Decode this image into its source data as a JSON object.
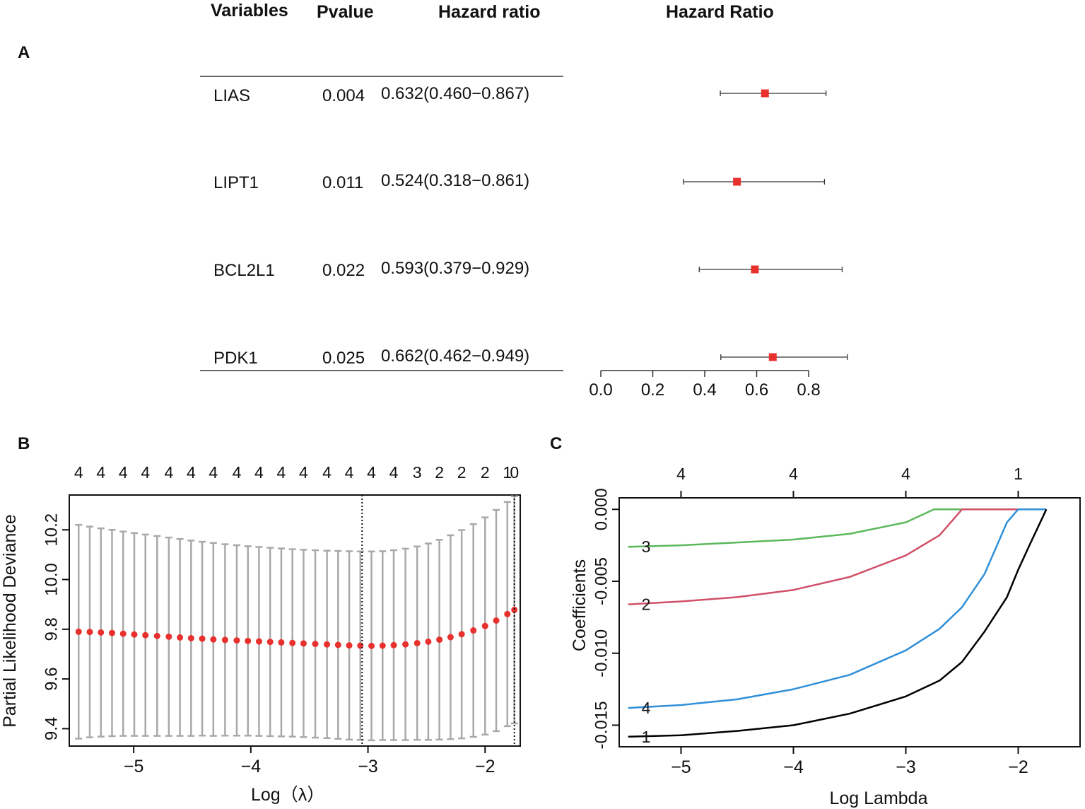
{
  "chart_data": [
    {
      "panel": "A",
      "type": "forest",
      "columns": {
        "variables": "Variables",
        "pvalue": "Pvalue",
        "hazard_ratio": "Hazard ratio"
      },
      "plot_title": "Hazard Ratio",
      "rows": [
        {
          "variable": "LIAS",
          "pvalue": "0.004",
          "hr_text": "0.632(0.460−0.867)",
          "hr": 0.632,
          "lower": 0.46,
          "upper": 0.867
        },
        {
          "variable": "LIPT1",
          "pvalue": "0.011",
          "hr_text": "0.524(0.318−0.861)",
          "hr": 0.524,
          "lower": 0.318,
          "upper": 0.861
        },
        {
          "variable": "BCL2L1",
          "pvalue": "0.022",
          "hr_text": "0.593(0.379−0.929)",
          "hr": 0.593,
          "lower": 0.379,
          "upper": 0.929
        },
        {
          "variable": "PDK1",
          "pvalue": "0.025",
          "hr_text": "0.662(0.462−0.949)",
          "hr": 0.662,
          "lower": 0.462,
          "upper": 0.949
        }
      ],
      "xaxis": {
        "min": 0.0,
        "max": 0.8,
        "ticks": [
          0.0,
          0.2,
          0.4,
          0.6,
          0.8
        ],
        "tick_labels": [
          "0.0",
          "0.2",
          "0.4",
          "0.6",
          "0.8"
        ]
      },
      "colors": {
        "point": "#e8302d",
        "line": "#333333"
      }
    },
    {
      "panel": "B",
      "type": "scatter",
      "xlabel": "Log（λ）",
      "ylabel": "Partial Likelihood Deviance",
      "xlim": [
        -5.55,
        -1.7
      ],
      "ylim": [
        9.33,
        10.34
      ],
      "xticks": [
        -5,
        -4,
        -3,
        -2
      ],
      "xtick_labels": [
        "−5",
        "−4",
        "−3",
        "−2"
      ],
      "yticks": [
        9.4,
        9.6,
        9.8,
        10.0,
        10.2
      ],
      "ytick_labels": [
        "9.4",
        "9.6",
        "9.8",
        "10.0",
        "10.2"
      ],
      "top_labels": [
        "4",
        "4",
        "4",
        "4",
        "4",
        "4",
        "4",
        "4",
        "4",
        "4",
        "4",
        "4",
        "4",
        "4",
        "4",
        "3",
        "2",
        "2",
        "2",
        "1",
        "0"
      ],
      "top_label_x": [
        -5.47,
        -5.28,
        -5.09,
        -4.9,
        -4.7,
        -4.51,
        -4.32,
        -4.12,
        -3.93,
        -3.74,
        -3.55,
        -3.35,
        -3.16,
        -2.97,
        -2.78,
        -2.58,
        -2.39,
        -2.2,
        -2.0,
        -1.81,
        -1.75
      ],
      "x": [
        -5.47,
        -5.375,
        -5.28,
        -5.185,
        -5.09,
        -4.995,
        -4.9,
        -4.8,
        -4.7,
        -4.605,
        -4.51,
        -4.415,
        -4.32,
        -4.22,
        -4.12,
        -4.025,
        -3.93,
        -3.835,
        -3.74,
        -3.645,
        -3.55,
        -3.45,
        -3.35,
        -3.255,
        -3.16,
        -3.065,
        -2.97,
        -2.875,
        -2.78,
        -2.68,
        -2.58,
        -2.485,
        -2.39,
        -2.295,
        -2.2,
        -2.1,
        -2.0,
        -1.905,
        -1.81,
        -1.75
      ],
      "mean": [
        9.79,
        9.789,
        9.787,
        9.785,
        9.782,
        9.779,
        9.776,
        9.773,
        9.77,
        9.767,
        9.764,
        9.762,
        9.759,
        9.757,
        9.755,
        9.753,
        9.751,
        9.749,
        9.747,
        9.745,
        9.743,
        9.741,
        9.739,
        9.737,
        9.735,
        9.734,
        9.733,
        9.734,
        9.736,
        9.739,
        9.744,
        9.75,
        9.758,
        9.768,
        9.78,
        9.795,
        9.813,
        9.835,
        9.861,
        9.878
      ],
      "upper": [
        10.22,
        10.213,
        10.206,
        10.2,
        10.193,
        10.187,
        10.181,
        10.175,
        10.169,
        10.163,
        10.157,
        10.152,
        10.147,
        10.142,
        10.138,
        10.134,
        10.131,
        10.128,
        10.125,
        10.122,
        10.12,
        10.118,
        10.116,
        10.115,
        10.114,
        10.113,
        10.113,
        10.114,
        10.118,
        10.124,
        10.133,
        10.145,
        10.16,
        10.178,
        10.199,
        10.223,
        10.25,
        10.28,
        10.312,
        10.335
      ],
      "lower": [
        9.36,
        9.365,
        9.368,
        9.37,
        9.371,
        9.371,
        9.371,
        9.371,
        9.371,
        9.371,
        9.371,
        9.372,
        9.371,
        9.372,
        9.372,
        9.372,
        9.371,
        9.37,
        9.369,
        9.368,
        9.366,
        9.364,
        9.362,
        9.359,
        9.356,
        9.355,
        9.353,
        9.354,
        9.354,
        9.354,
        9.355,
        9.355,
        9.356,
        9.358,
        9.361,
        9.367,
        9.376,
        9.39,
        9.41,
        9.421
      ],
      "vlines": [
        -3.05,
        -1.75
      ],
      "colors": {
        "point": "#e8302d",
        "errorbar": "#a9a9a9"
      }
    },
    {
      "panel": "C",
      "type": "line",
      "xlabel": "Log Lambda",
      "ylabel": "Coefficients",
      "xlim": [
        -5.55,
        -1.45
      ],
      "ylim": [
        -0.0165,
        0.0008
      ],
      "xticks": [
        -5,
        -4,
        -3,
        -2
      ],
      "xtick_labels": [
        "−5",
        "−4",
        "−3",
        "−2"
      ],
      "yticks": [
        0.0,
        -0.005,
        -0.01,
        -0.015
      ],
      "ytick_labels": [
        "0.000",
        "-0.005",
        "-0.010",
        "-0.015"
      ],
      "top_labels": [
        "4",
        "4",
        "4",
        "1"
      ],
      "top_label_x": [
        -5,
        -4,
        -3,
        -2
      ],
      "series": [
        {
          "name": "3",
          "color": "#5cb85c",
          "x": [
            -5.47,
            -5.0,
            -4.5,
            -4.0,
            -3.5,
            -3.0,
            -2.75,
            -1.75
          ],
          "y": [
            -0.0026,
            -0.0025,
            -0.0023,
            -0.0021,
            -0.0017,
            -0.0009,
            0.0,
            0.0
          ]
        },
        {
          "name": "2",
          "color": "#d05068",
          "x": [
            -5.47,
            -5.0,
            -4.5,
            -4.0,
            -3.5,
            -3.0,
            -2.7,
            -2.5,
            -1.75
          ],
          "y": [
            -0.0066,
            -0.0064,
            -0.0061,
            -0.0056,
            -0.0047,
            -0.0032,
            -0.0018,
            0.0,
            0.0
          ]
        },
        {
          "name": "4",
          "color": "#2f8fd8",
          "x": [
            -5.47,
            -5.0,
            -4.5,
            -4.0,
            -3.5,
            -3.0,
            -2.7,
            -2.5,
            -2.3,
            -2.15,
            -2.1,
            -2.0,
            -1.75
          ],
          "y": [
            -0.0138,
            -0.0136,
            -0.0132,
            -0.0125,
            -0.0115,
            -0.0098,
            -0.0083,
            -0.0068,
            -0.0045,
            -0.0018,
            -0.0009,
            0.0,
            0.0
          ]
        },
        {
          "name": "1",
          "color": "#000000",
          "x": [
            -5.47,
            -5.0,
            -4.5,
            -4.0,
            -3.5,
            -3.0,
            -2.7,
            -2.5,
            -2.3,
            -2.1,
            -2.0,
            -1.9,
            -1.75
          ],
          "y": [
            -0.0158,
            -0.0157,
            -0.0154,
            -0.015,
            -0.0142,
            -0.013,
            -0.0119,
            -0.0106,
            -0.0085,
            -0.0061,
            -0.0042,
            -0.0025,
            0.0
          ]
        }
      ]
    }
  ],
  "panel_labels": {
    "a": "A",
    "b": "B",
    "c": "C"
  }
}
